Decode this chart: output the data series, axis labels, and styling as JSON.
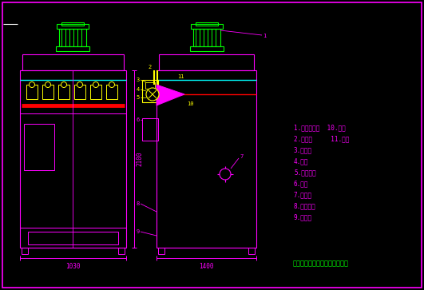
{
  "bg_color": "#000000",
  "magenta_color": "#ff00ff",
  "cyan_color": "#00ffff",
  "green_color": "#00ff00",
  "yellow_color": "#ffff00",
  "red_color": "#ff0000",
  "white_color": "#ffffff",
  "company": "北京华康中天国际环保有限公司",
  "legend_lines": [
    "1.除尘器機头  10.管道",
    "2.气缸机     11.滤筒",
    "3.过滤间",
    "4.气包",
    "5.气包支架",
    "6.算筒",
    "7.送风口",
    "8.自清筒场",
    "9.行车处"
  ],
  "dim_1030": "1030",
  "dim_2100": "2100",
  "dim_1400": "1400"
}
